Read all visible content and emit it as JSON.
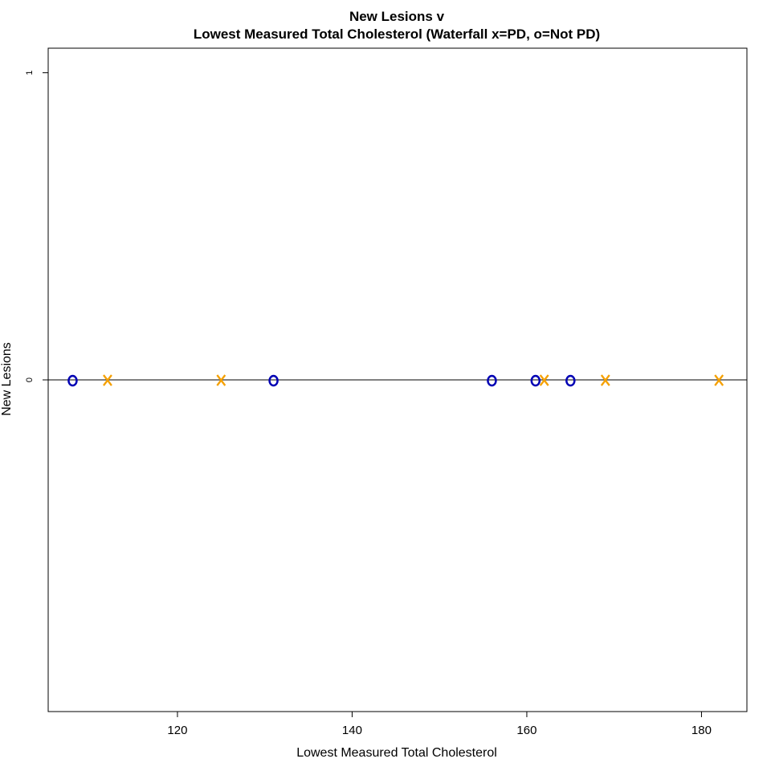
{
  "chart_data": {
    "type": "scatter",
    "title": "New Lesions v",
    "subtitle": "Lowest Measured Total Cholesterol (Waterfall x=PD, o=Not PD)",
    "xlabel": "Lowest Measured Total Cholesterol",
    "ylabel": "New Lesions",
    "xlim": [
      105.2,
      185.2
    ],
    "ylim": [
      -1.08,
      1.08
    ],
    "x_ticks": [
      120,
      140,
      160,
      180
    ],
    "x_tick_labels": [
      "120",
      "140",
      "160",
      "180"
    ],
    "y_ticks": [
      0,
      1
    ],
    "y_tick_labels": [
      "0",
      "1"
    ],
    "reference_line_y": 0,
    "series": [
      {
        "marker": "x",
        "color": "#f5a000",
        "points": [
          {
            "x": 112,
            "y": 0
          },
          {
            "x": 125,
            "y": 0
          },
          {
            "x": 162,
            "y": 0
          },
          {
            "x": 169,
            "y": 0
          },
          {
            "x": 182,
            "y": 0
          }
        ]
      },
      {
        "marker": "o",
        "color": "#0000b4",
        "points": [
          {
            "x": 108,
            "y": 0
          },
          {
            "x": 131,
            "y": 0
          },
          {
            "x": 156,
            "y": 0
          },
          {
            "x": 161,
            "y": 0
          },
          {
            "x": 165,
            "y": 0
          }
        ]
      }
    ]
  }
}
